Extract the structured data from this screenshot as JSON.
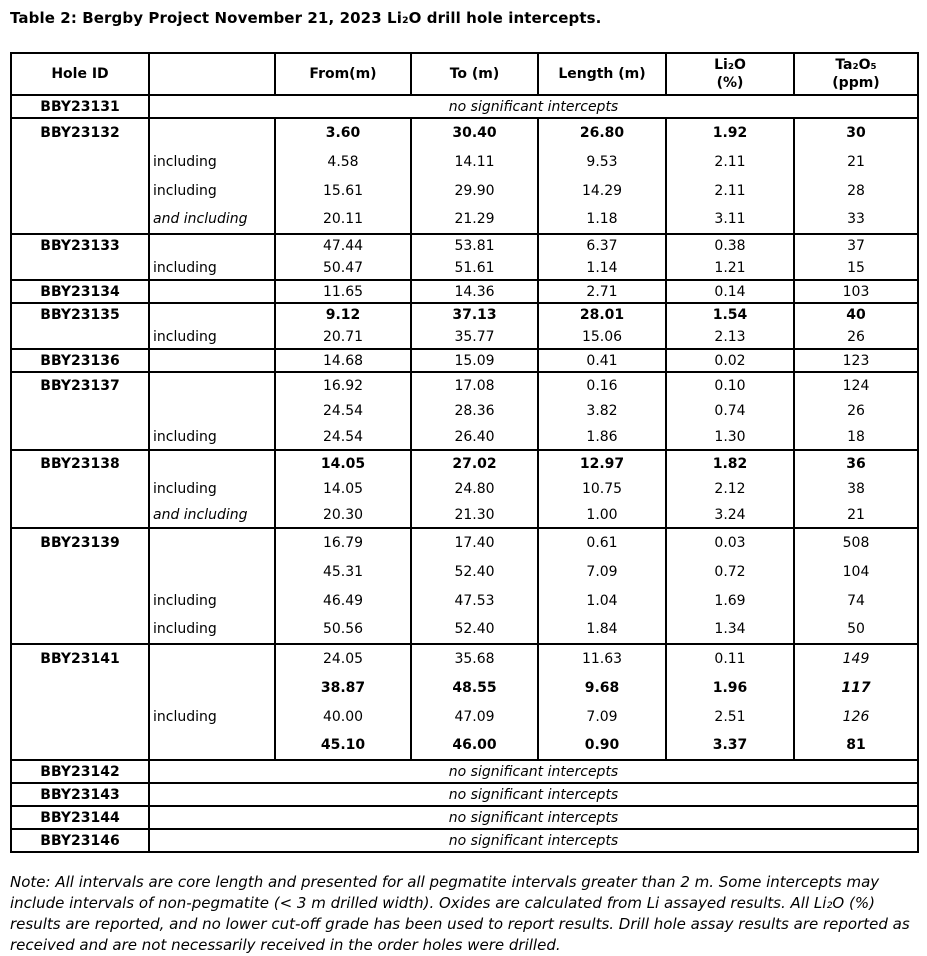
{
  "title": "Table 2: Bergby Project November 21, 2023 Li₂O drill hole intercepts.",
  "table": {
    "columns": [
      "Hole ID",
      "",
      "From(m)",
      "To (m)",
      "Length (m)",
      "Li₂O\n(%)",
      "Ta₂O₅\n(ppm)"
    ],
    "no_intercepts_text": "no significant intercepts",
    "groups": [
      {
        "hole": "BBY23131",
        "no_significant_intercepts": true
      },
      {
        "hole": "BBY23132",
        "rows": [
          {
            "qualifier": "",
            "from": "3.60",
            "to": "30.40",
            "length": "26.80",
            "li2o": "1.92",
            "ta2o5": "30",
            "bold": true
          },
          {
            "qualifier": "including",
            "from": "4.58",
            "to": "14.11",
            "length": "9.53",
            "li2o": "2.11",
            "ta2o5": "21"
          },
          {
            "qualifier": "including",
            "from": "15.61",
            "to": "29.90",
            "length": "14.29",
            "li2o": "2.11",
            "ta2o5": "28"
          },
          {
            "qualifier": "and including",
            "qualifier_italic": true,
            "from": "20.11",
            "to": "21.29",
            "length": "1.18",
            "li2o": "3.11",
            "ta2o5": "33"
          }
        ]
      },
      {
        "hole": "BBY23133",
        "rows": [
          {
            "qualifier": "",
            "from": "47.44",
            "to": "53.81",
            "length": "6.37",
            "li2o": "0.38",
            "ta2o5": "37"
          },
          {
            "qualifier": "including",
            "from": "50.47",
            "to": "51.61",
            "length": "1.14",
            "li2o": "1.21",
            "ta2o5": "15"
          }
        ]
      },
      {
        "hole": "BBY23134",
        "rows": [
          {
            "qualifier": "",
            "from": "11.65",
            "to": "14.36",
            "length": "2.71",
            "li2o": "0.14",
            "ta2o5": "103"
          }
        ]
      },
      {
        "hole": "BBY23135",
        "rows": [
          {
            "qualifier": "",
            "from": "9.12",
            "to": "37.13",
            "length": "28.01",
            "li2o": "1.54",
            "ta2o5": "40",
            "bold": true
          },
          {
            "qualifier": "including",
            "from": "20.71",
            "to": "35.77",
            "length": "15.06",
            "li2o": "2.13",
            "ta2o5": "26"
          }
        ]
      },
      {
        "hole": "BBY23136",
        "rows": [
          {
            "qualifier": "",
            "from": "14.68",
            "to": "15.09",
            "length": "0.41",
            "li2o": "0.02",
            "ta2o5": "123"
          }
        ]
      },
      {
        "hole": "BBY23137",
        "rows": [
          {
            "qualifier": "",
            "from": "16.92",
            "to": "17.08",
            "length": "0.16",
            "li2o": "0.10",
            "ta2o5": "124"
          },
          {
            "qualifier": "",
            "from": "24.54",
            "to": "28.36",
            "length": "3.82",
            "li2o": "0.74",
            "ta2o5": "26"
          },
          {
            "qualifier": "including",
            "from": "24.54",
            "to": "26.40",
            "length": "1.86",
            "li2o": "1.30",
            "ta2o5": "18"
          }
        ]
      },
      {
        "hole": "BBY23138",
        "rows": [
          {
            "qualifier": "",
            "from": "14.05",
            "to": "27.02",
            "length": "12.97",
            "li2o": "1.82",
            "ta2o5": "36",
            "bold": true
          },
          {
            "qualifier": "including",
            "from": "14.05",
            "to": "24.80",
            "length": "10.75",
            "li2o": "2.12",
            "ta2o5": "38"
          },
          {
            "qualifier": "and including",
            "qualifier_italic": true,
            "from": "20.30",
            "to": "21.30",
            "length": "1.00",
            "li2o": "3.24",
            "ta2o5": "21"
          }
        ]
      },
      {
        "hole": "BBY23139",
        "rows": [
          {
            "qualifier": "",
            "from": "16.79",
            "to": "17.40",
            "length": "0.61",
            "li2o": "0.03",
            "ta2o5": "508"
          },
          {
            "qualifier": "",
            "from": "45.31",
            "to": "52.40",
            "length": "7.09",
            "li2o": "0.72",
            "ta2o5": "104"
          },
          {
            "qualifier": "including",
            "from": "46.49",
            "to": "47.53",
            "length": "1.04",
            "li2o": "1.69",
            "ta2o5": "74"
          },
          {
            "qualifier": "including",
            "from": "50.56",
            "to": "52.40",
            "length": "1.84",
            "li2o": "1.34",
            "ta2o5": "50"
          }
        ]
      },
      {
        "hole": "BBY23141",
        "rows": [
          {
            "qualifier": "",
            "from": "24.05",
            "to": "35.68",
            "length": "11.63",
            "li2o": "0.11",
            "ta2o5": "149",
            "ta2o5_italic": true
          },
          {
            "qualifier": "",
            "from": "38.87",
            "to": "48.55",
            "length": "9.68",
            "li2o": "1.96",
            "ta2o5": "117",
            "bold": true,
            "ta2o5_italic": true
          },
          {
            "qualifier": "including",
            "from": "40.00",
            "to": "47.09",
            "length": "7.09",
            "li2o": "2.51",
            "ta2o5": "126",
            "ta2o5_italic": true
          },
          {
            "qualifier": "",
            "from": "45.10",
            "to": "46.00",
            "length": "0.90",
            "li2o": "3.37",
            "ta2o5": "81",
            "bold": true
          }
        ]
      },
      {
        "hole": "BBY23142",
        "no_significant_intercepts": true
      },
      {
        "hole": "BBY23143",
        "no_significant_intercepts": true
      },
      {
        "hole": "BBY23144",
        "no_significant_intercepts": true
      },
      {
        "hole": "BBY23146",
        "no_significant_intercepts": true
      }
    ]
  },
  "note": "Note: All intervals are core length and presented for all pegmatite intervals greater than 2 m. Some intercepts may include intervals of non-pegmatite (< 3 m drilled width). Oxides are calculated from Li assayed results. All Li₂O (%) results are reported, and no lower cut-off grade has been used to report results. Drill hole assay results are reported as received and are not necessarily received in the order holes were drilled."
}
